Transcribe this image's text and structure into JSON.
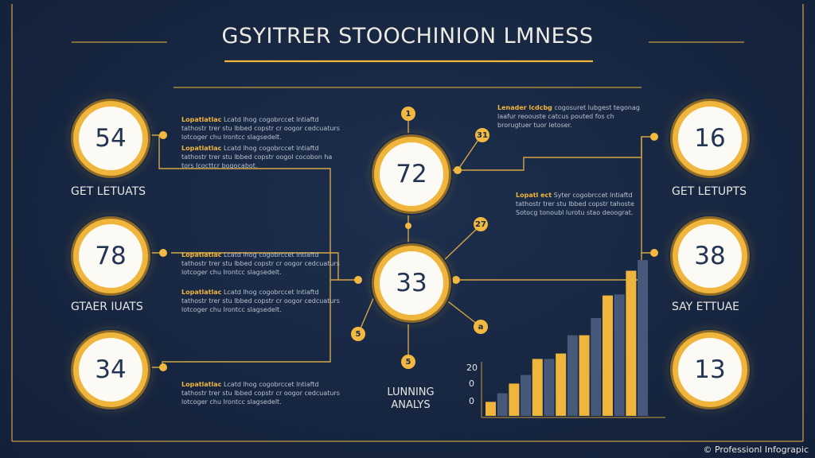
{
  "title": "GSYITRER STOOCHINION LMNESS",
  "stats": [
    {
      "value": "54"
    },
    {
      "value": "78"
    },
    {
      "value": "34"
    },
    {
      "value": "72"
    },
    {
      "value": "33"
    },
    {
      "value": "16"
    },
    {
      "value": "38"
    },
    {
      "value": "13"
    }
  ],
  "captions": {
    "left_top": "GET LETUATS",
    "left_mid": "GTAER IUATS",
    "right_top": "GET LETUPTS",
    "right_mid": "SAY ETTUAE",
    "analysis_line1": "LUNNING",
    "analysis_line2": "ANALYS"
  },
  "notes": [
    {
      "head": "Lopatlatlac",
      "body": "Lcatd lhog cogobrccet lntiaftd tathostr trer stu lbbed copstr cr oogor cedcuaturs lotcoger chu Irontcc slagsedelt."
    },
    {
      "head": "Lopatlatlac",
      "body": "Lcatd lhog cogobrccet lntiaftd tathostr trer stu lbbed copstr oogol cocobon ha tors Icocttcr bogocabot."
    },
    {
      "head": "Lopatlatlac",
      "body": "Lcatd lhog cogobrccet lntiaftd tathostr trer stu lbbed copstr cr oogor cedcuaturs lotcoger chu Irontcc slagsedelt."
    },
    {
      "head": "Lopatlatlac",
      "body": "Lcatd lhog cogobrccet lntiaftd tathostr trer stu lbbed copstr cr oogor cedcuaturs lotcoger chu Irontcc slagsedelt."
    },
    {
      "head": "Lopatlatlac",
      "body": "Lcatd lhog cogobrccet lntiaftd tathostr trer stu lbbed copstr cr oogor cedcuaturs lotcoger chu Irontcc slagsedelt."
    },
    {
      "head": "Lenader lcdcbg",
      "body": "cogosuret lubgest tegonag laafur reoouste catcus pouted fos ch brorugtuer tuor letoser."
    },
    {
      "head": "Lopatl ect",
      "body": "Syter cogobrccet lntiaftd tathostr trer stu lbbed copstr tahoste Sotocg tonoubl lurotu stao deoograt."
    }
  ],
  "badges": [
    "1",
    "31",
    "27",
    "5",
    "5",
    "a"
  ],
  "bar_axis": {
    "ticks": [
      "20",
      "0",
      "0"
    ]
  },
  "bar_values": [
    13,
    21,
    30,
    38,
    53,
    53,
    58,
    75,
    75,
    91,
    112,
    113,
    135,
    145
  ],
  "footer": "© Professionl Infograpic",
  "colors": {
    "background": "#172640",
    "accent": "#f0b53d",
    "bar_dark": "#46597a",
    "text": "#ecebe4"
  }
}
